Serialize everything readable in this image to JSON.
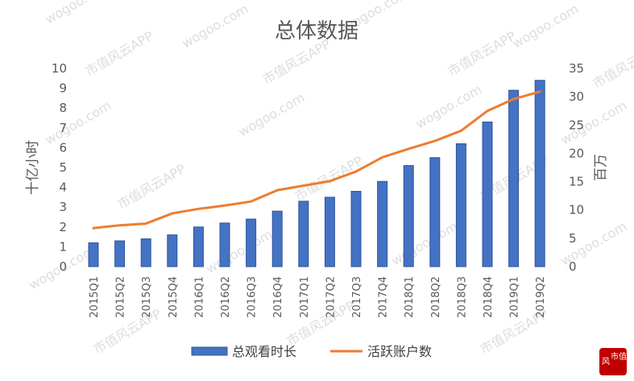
{
  "chart_data": {
    "type": "bar",
    "title": "总体数据",
    "categories": [
      "2015Q1",
      "2015Q2",
      "2015Q3",
      "2015Q4",
      "2016Q1",
      "2016Q2",
      "2016Q3",
      "2016Q4",
      "2017Q1",
      "2017Q2",
      "2017Q3",
      "2017Q4",
      "2018Q1",
      "2018Q2",
      "2018Q3",
      "2018Q4",
      "2019Q1",
      "2019Q2"
    ],
    "series": [
      {
        "name": "总观看时长",
        "type": "bar",
        "axis": "left",
        "color": "#4472c4",
        "values": [
          1.2,
          1.3,
          1.4,
          1.6,
          2.0,
          2.2,
          2.4,
          2.8,
          3.3,
          3.5,
          3.8,
          4.3,
          5.1,
          5.5,
          6.2,
          7.3,
          8.9,
          9.4
        ]
      },
      {
        "name": "活跃账户数",
        "type": "line",
        "axis": "right",
        "color": "#ed7d31",
        "values": [
          6.8,
          7.3,
          7.6,
          9.4,
          10.2,
          10.8,
          11.5,
          13.5,
          14.3,
          15.1,
          16.8,
          19.3,
          20.8,
          22.2,
          24.0,
          27.5,
          29.6,
          30.9
        ]
      }
    ],
    "ylabel": "十亿小时",
    "y2label": "百万",
    "ylim": [
      0,
      10
    ],
    "y2lim": [
      0,
      35
    ],
    "yticks": [
      "0",
      "1",
      "2",
      "3",
      "4",
      "5",
      "6",
      "7",
      "8",
      "9",
      "10"
    ],
    "y2ticks": [
      "0",
      "5",
      "10",
      "15",
      "20",
      "25",
      "30",
      "35"
    ],
    "grid": false,
    "legend": "bottom"
  },
  "watermark": {
    "site": "wogoo.com",
    "app": "市值风云APP"
  },
  "logo": {
    "char1": "风",
    "char2": "市值"
  }
}
